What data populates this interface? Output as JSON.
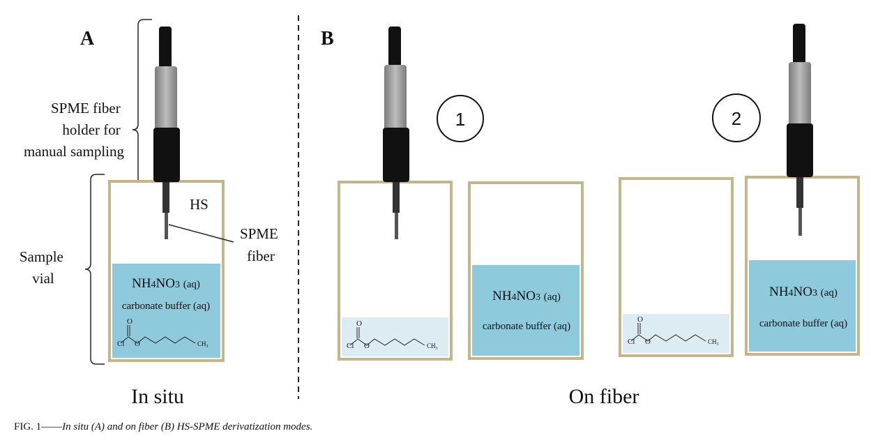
{
  "panels": {
    "A": {
      "letter": "A",
      "holder_label": [
        "SPME fiber",
        "holder for",
        "manual sampling"
      ],
      "vial_label": [
        "Sample",
        "vial"
      ],
      "hs_label": "HS",
      "fiber_label": [
        "SPME",
        "fiber"
      ],
      "solution": {
        "compound": "NH4NO3",
        "compound_suffix": "(aq)",
        "buffer": "carbonate buffer (aq)"
      },
      "mode_label": "In situ"
    },
    "B": {
      "letter": "B",
      "step1": "1",
      "step2": "2",
      "solution": {
        "compound": "NH4NO3",
        "compound_suffix": "(aq)",
        "buffer": "carbonate buffer (aq)"
      },
      "mode_label": "On fiber"
    }
  },
  "molecule": {
    "cl": "Cl",
    "o": "O",
    "ch3": "CH3"
  },
  "caption": {
    "prefix": "FIG. 1——",
    "text": "In situ (A) and on fiber (B) HS-SPME derivatization modes."
  },
  "colors": {
    "vial_border": "#c4b68a",
    "solution_blue": "#8ec9dc",
    "reagent_light": "#dcecf2",
    "holder_black": "#111111",
    "holder_gray": "#9a9a9a"
  }
}
